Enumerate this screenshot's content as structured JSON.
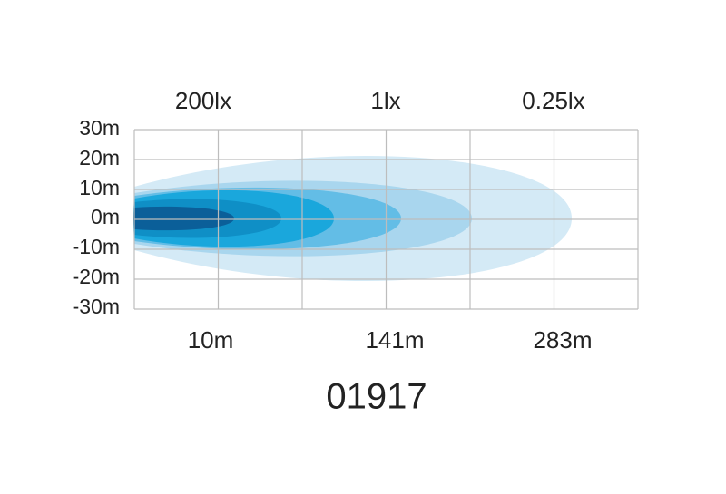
{
  "illumination_labels": [
    "200lx",
    "1lx",
    "0.25lx"
  ],
  "width_labels": [
    "30m",
    "20m",
    "10m",
    "0m",
    "-10m",
    "-20m",
    "-30m"
  ],
  "distance_labels": [
    "10m",
    "141m",
    "283m"
  ],
  "model": "01917"
}
